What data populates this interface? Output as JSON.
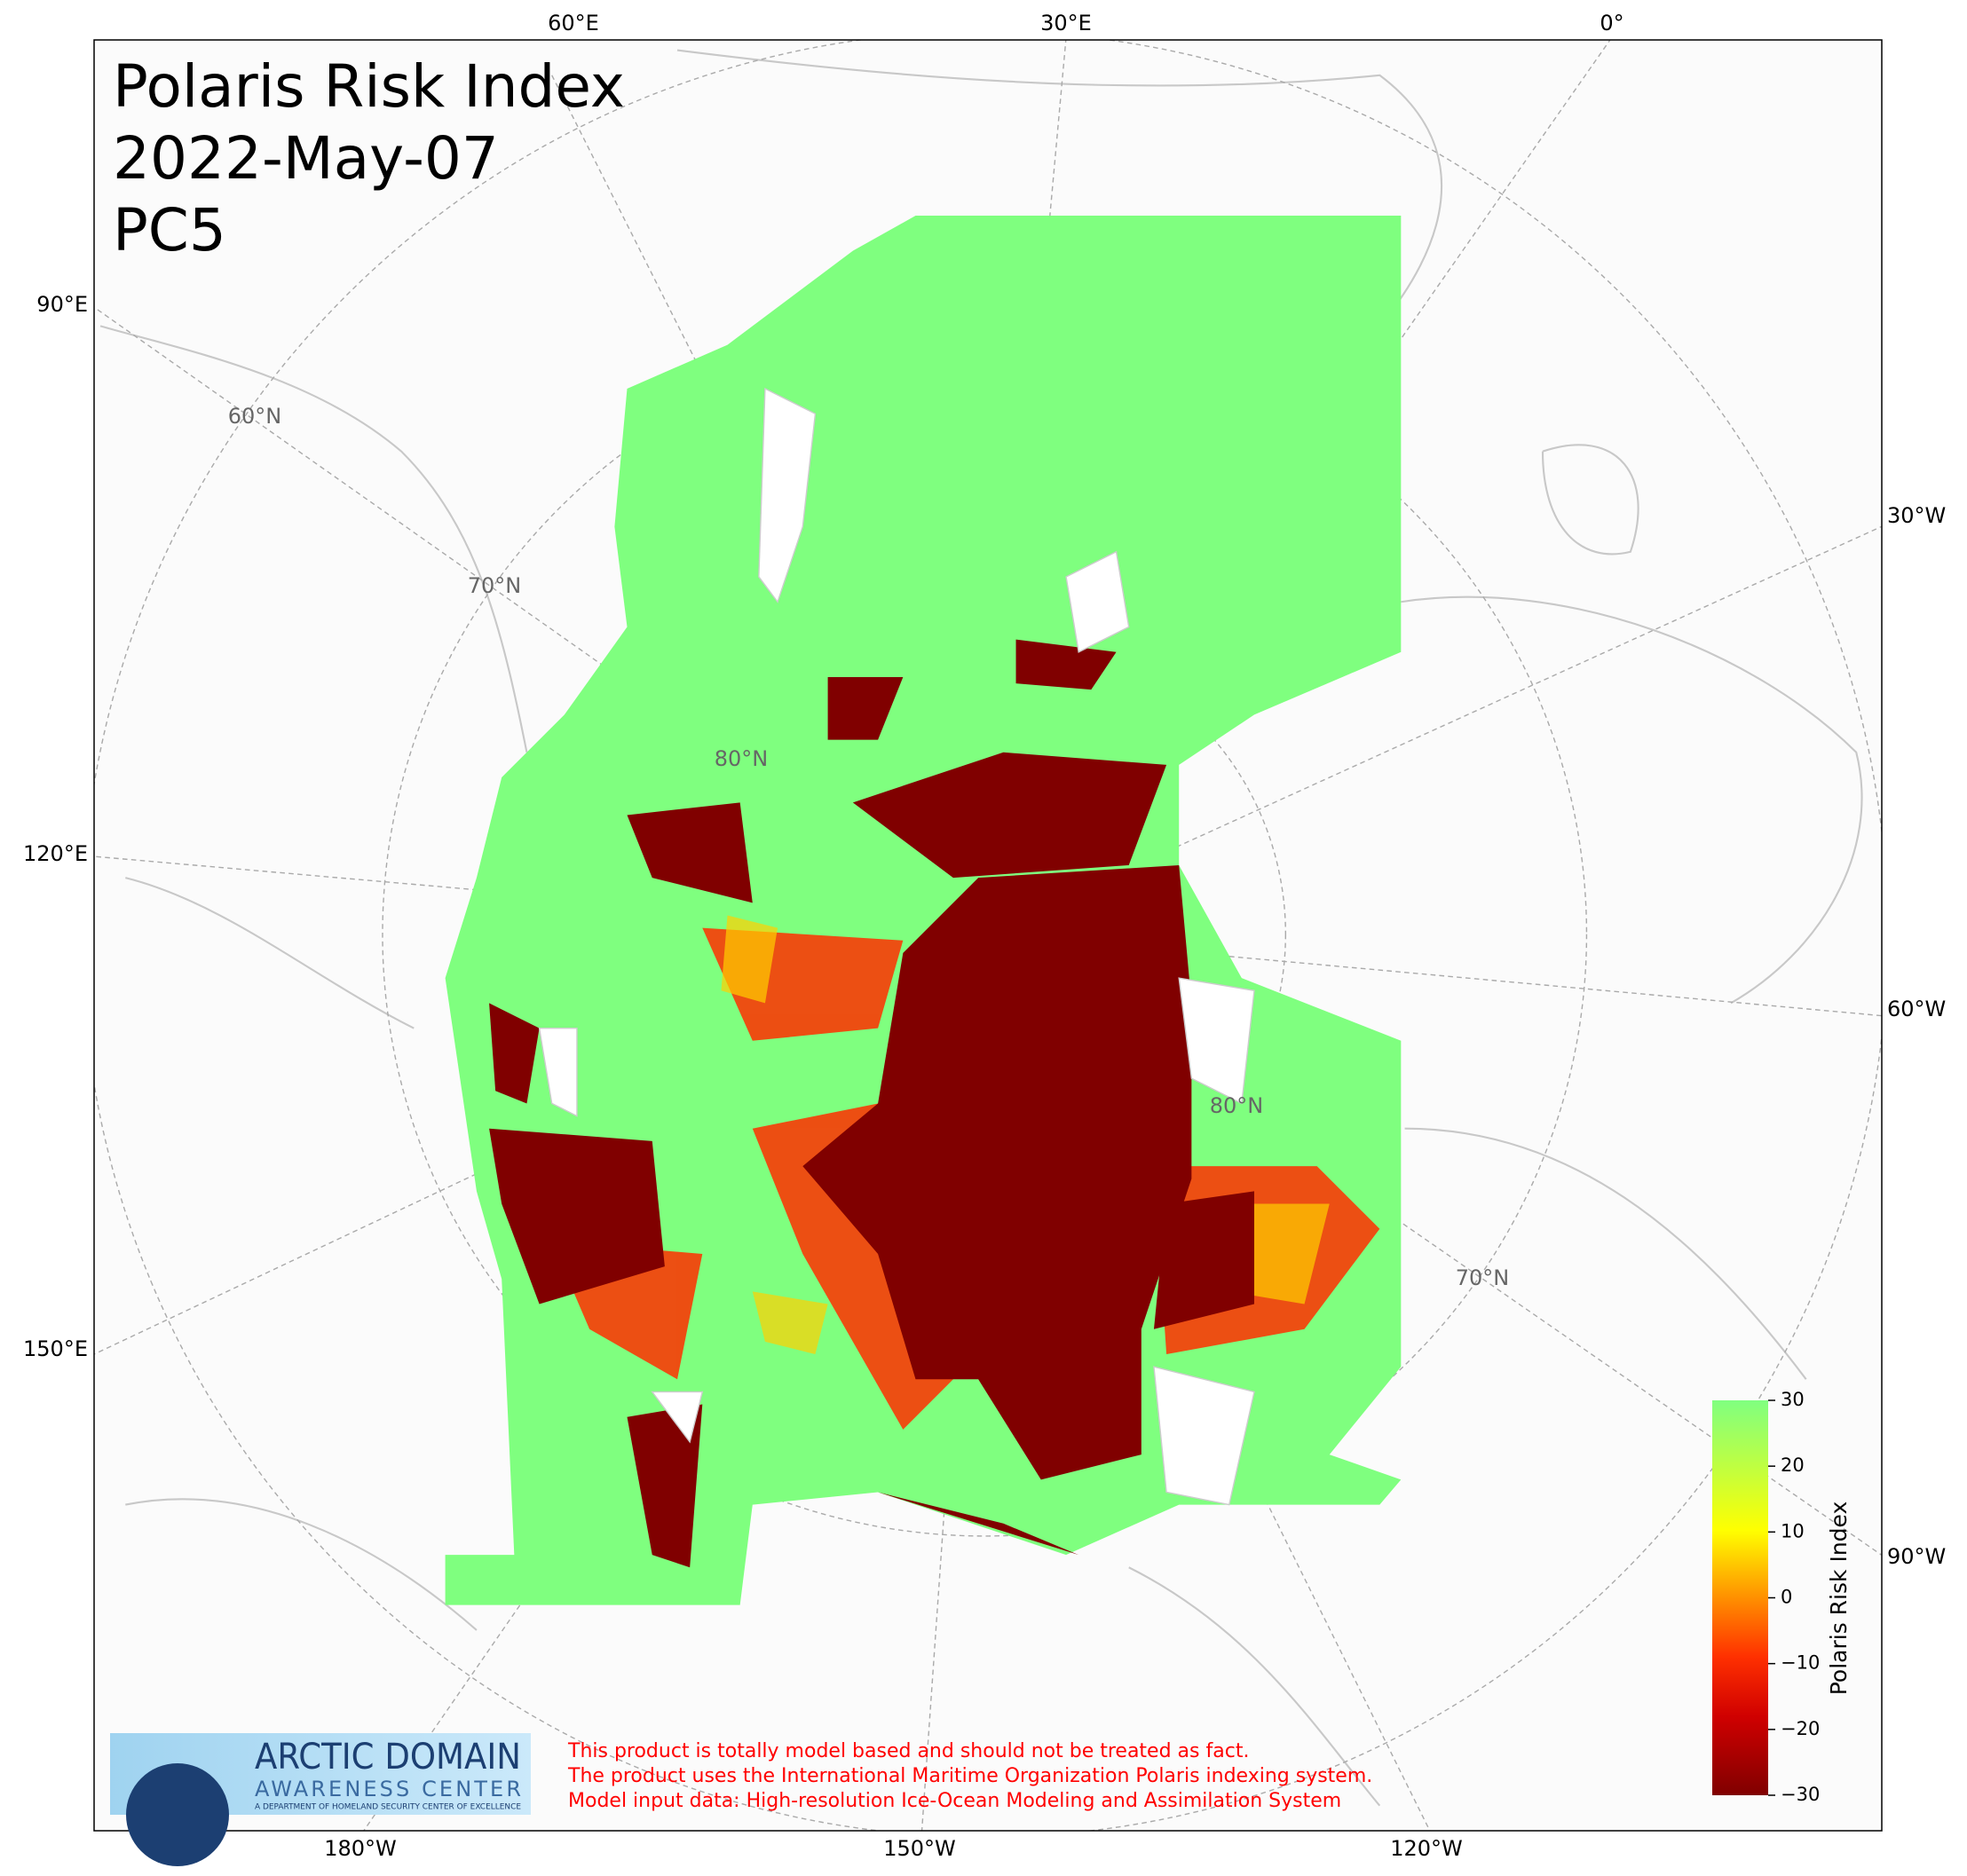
{
  "title": [
    "Polaris Risk Index",
    "2022-May-07",
    "PC5"
  ],
  "longitude_labels": {
    "top": [
      "60°E",
      "30°E",
      "0°"
    ],
    "bottom": [
      "180°W",
      "150°W",
      "120°W"
    ],
    "left": [
      "90°E",
      "120°E",
      "150°E"
    ],
    "right": [
      "30°W",
      "60°W",
      "90°W"
    ]
  },
  "latitude_labels": [
    "60°N",
    "70°N",
    "80°N",
    "80°N",
    "70°N"
  ],
  "colorbar": {
    "label": "Polaris Risk Index",
    "lim": [
      -30,
      30
    ],
    "ticks": [
      {
        "value": -30,
        "label": "−30"
      },
      {
        "value": -20,
        "label": "−20"
      },
      {
        "value": -10,
        "label": "−10"
      },
      0,
      10,
      20,
      30
    ]
  },
  "logo": {
    "title": "ARCTIC DOMAIN",
    "subtitle": "AWARENESS CENTER",
    "tagline": "A DEPARTMENT OF HOMELAND SECURITY CENTER OF EXCELLENCE"
  },
  "disclaimer": [
    "This product is totally model based and should not be treated as fact.",
    "The product uses the International Maritime Organization Polaris indexing system.",
    "Model input data: High-resolution Ice-Ocean Modeling and Assimilation System"
  ]
}
